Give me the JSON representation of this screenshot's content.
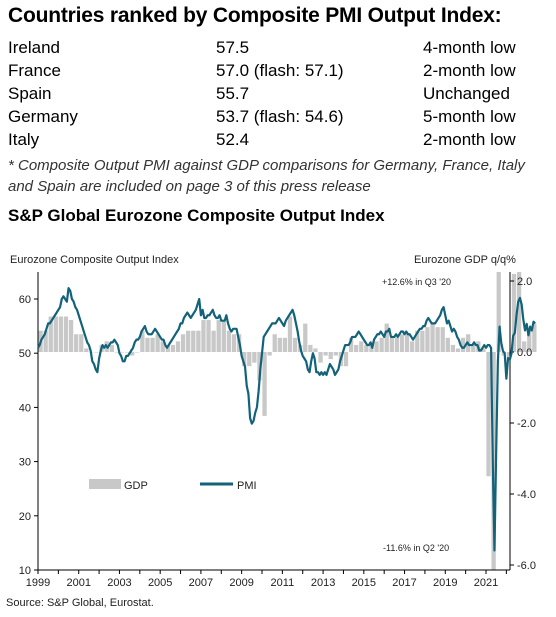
{
  "title": "Countries ranked by Composite PMI Output Index:",
  "rankings": [
    {
      "country": "Ireland",
      "value": "57.5",
      "status": "4-month low"
    },
    {
      "country": "France",
      "value": "57.0 (flash: 57.1)",
      "status": "2-month low"
    },
    {
      "country": "Spain",
      "value": "55.7",
      "status": "Unchanged"
    },
    {
      "country": "Germany",
      "value": "53.7 (flash: 54.6)",
      "status": "5-month low"
    },
    {
      "country": "Italy",
      "value": "52.4",
      "status": "2-month low"
    }
  ],
  "footnote": "* Composite Output PMI against GDP comparisons for Germany, France, Italy and Spain are included on page 3 of this press release",
  "subtitle": "S&P Global Eurozone Composite Output Index",
  "source": "Source: S&P Global, Eurostat.",
  "chart_data": {
    "type": "bar+line",
    "left_axis_label": "Eurozone Composite Output Index",
    "right_axis_label": "Eurozone GDP q/q%",
    "left_ylim": [
      10,
      60
    ],
    "left_ticks": [
      10,
      20,
      30,
      40,
      50,
      60
    ],
    "right_ylim": [
      -6.0,
      2.0
    ],
    "right_ticks": [
      "2.0",
      "0.0",
      "-2.0",
      "-4.0",
      "-6.0"
    ],
    "x_ticks": [
      "1999",
      "2001",
      "2003",
      "2005",
      "2007",
      "2009",
      "2011",
      "2013",
      "2015",
      "2017",
      "2019",
      "2021"
    ],
    "legend": {
      "gdp": "GDP",
      "pmi": "PMI"
    },
    "annotations": {
      "high": "+12.6% in Q3 '20",
      "low": "-11.6% in Q2 '20"
    },
    "colors": {
      "gdp_bar": "#c8c8c8",
      "pmi_line": "#12637a"
    },
    "gdp_series": {
      "name": "GDP",
      "start_quarter": "1999-Q1",
      "values": [
        0.6,
        0.6,
        1.0,
        1.0,
        1.0,
        1.0,
        0.9,
        0.5,
        0.5,
        0.1,
        0.0,
        0.0,
        0.2,
        0.3,
        0.2,
        0.0,
        0.0,
        0.0,
        -0.1,
        0.0,
        0.6,
        0.4,
        0.4,
        0.5,
        0.3,
        0.2,
        0.2,
        0.3,
        0.5,
        0.6,
        0.6,
        0.6,
        0.9,
        0.9,
        0.6,
        0.9,
        0.9,
        0.6,
        0.5,
        0.5,
        -0.4,
        -0.4,
        -0.3,
        -0.8,
        -1.8,
        -0.1,
        0.5,
        0.4,
        0.4,
        1.0,
        0.4,
        0.2,
        0.8,
        0.2,
        0.1,
        -0.3,
        -0.1,
        -0.2,
        -0.1,
        -0.4,
        -0.4,
        0.4,
        0.2,
        0.3,
        0.2,
        0.2,
        0.3,
        0.4,
        0.8,
        0.4,
        0.4,
        0.5,
        0.5,
        0.3,
        0.6,
        0.6,
        0.7,
        0.8,
        0.7,
        0.7,
        0.4,
        0.2,
        0.1,
        0.4,
        0.5,
        0.2,
        0.3,
        0.1,
        -3.5,
        -11.6,
        12.6,
        -0.1,
        -0.2,
        2.2,
        2.3,
        0.3,
        0.6,
        0.8
      ]
    },
    "pmi_series": {
      "name": "PMI",
      "start_month": "1999-01",
      "values": [
        51.0,
        51.5,
        52.5,
        53.0,
        53.5,
        54.5,
        55.5,
        55.5,
        56.0,
        56.5,
        57.0,
        57.5,
        58.0,
        58.5,
        60.0,
        60.5,
        60.0,
        59.5,
        62.0,
        61.5,
        60.0,
        59.5,
        58.5,
        58.0,
        57.0,
        56.0,
        55.0,
        54.0,
        53.0,
        52.0,
        51.5,
        50.5,
        48.5,
        48.0,
        47.0,
        46.5,
        49.0,
        50.5,
        51.5,
        51.0,
        51.5,
        51.0,
        51.5,
        52.0,
        52.0,
        52.5,
        52.0,
        51.5,
        50.0,
        49.5,
        48.5,
        48.5,
        49.5,
        49.5,
        50.0,
        50.5,
        51.0,
        52.0,
        52.5,
        52.5,
        53.0,
        54.0,
        54.5,
        55.0,
        54.0,
        53.5,
        53.5,
        53.5,
        54.0,
        54.5,
        54.0,
        53.5,
        53.0,
        52.5,
        52.5,
        51.5,
        51.0,
        51.5,
        52.0,
        52.5,
        53.0,
        53.5,
        54.0,
        54.5,
        55.5,
        55.5,
        56.5,
        57.0,
        57.5,
        57.0,
        56.5,
        57.0,
        57.5,
        58.0,
        59.0,
        60.0,
        57.0,
        58.0,
        56.5,
        56.5,
        57.0,
        57.0,
        57.5,
        58.0,
        57.0,
        56.5,
        56.5,
        57.0,
        56.0,
        56.0,
        56.0,
        57.0,
        55.5,
        54.5,
        54.0,
        54.5,
        54.5,
        54.5,
        53.0,
        51.5,
        49.5,
        48.5,
        47.5,
        44.0,
        42.5,
        38.0,
        37.0,
        37.5,
        39.0,
        40.0,
        43.0,
        47.0,
        50.0,
        53.0,
        53.5,
        54.0,
        54.5,
        55.0,
        55.5,
        55.5,
        55.5,
        56.0,
        56.5,
        56.0,
        55.5,
        55.0,
        56.0,
        56.5,
        57.0,
        57.5,
        58.0,
        57.0,
        55.5,
        54.0,
        52.0,
        50.5,
        49.5,
        49.0,
        48.5,
        47.0,
        46.5,
        48.5,
        50.0,
        49.0,
        46.5,
        46.5,
        46.0,
        46.5,
        46.0,
        46.5,
        46.0,
        47.0,
        48.0,
        47.5,
        47.0,
        46.0,
        46.5,
        47.0,
        48.5,
        49.5,
        50.5,
        51.5,
        51.5,
        51.5,
        52.0,
        53.0,
        53.0,
        53.0,
        53.5,
        54.0,
        53.5,
        53.0,
        52.5,
        52.0,
        51.5,
        51.5,
        52.0,
        51.0,
        52.5,
        53.0,
        53.5,
        53.5,
        54.0,
        53.5,
        53.0,
        54.0,
        54.0,
        54.5,
        53.0,
        53.0,
        53.0,
        53.5,
        53.0,
        53.5,
        54.0,
        54.0,
        53.5,
        54.0,
        53.5,
        53.5,
        53.0,
        52.5,
        53.0,
        53.5,
        54.0,
        54.5,
        54.5,
        55.0,
        55.0,
        56.0,
        56.5,
        56.0,
        55.5,
        55.5,
        55.5,
        56.0,
        56.5,
        57.0,
        58.0,
        58.5,
        57.0,
        55.5,
        56.0,
        55.0,
        54.0,
        54.5,
        54.0,
        53.0,
        52.5,
        51.5,
        51.0,
        51.0,
        51.5,
        52.0,
        51.5,
        51.5,
        51.5,
        52.0,
        51.5,
        51.5,
        50.5,
        50.5,
        51.0,
        51.5,
        51.0,
        51.5,
        51.5,
        51.0,
        29.7,
        13.6,
        31.9,
        48.5,
        54.9,
        51.9,
        50.4,
        50.0,
        45.3,
        49.1,
        48.8,
        49.9,
        53.2,
        53.8,
        57.1,
        59.5,
        60.2,
        59.0,
        56.2,
        54.2,
        55.4,
        53.3,
        54.9,
        54.2,
        55.8,
        55.5
      ]
    }
  }
}
